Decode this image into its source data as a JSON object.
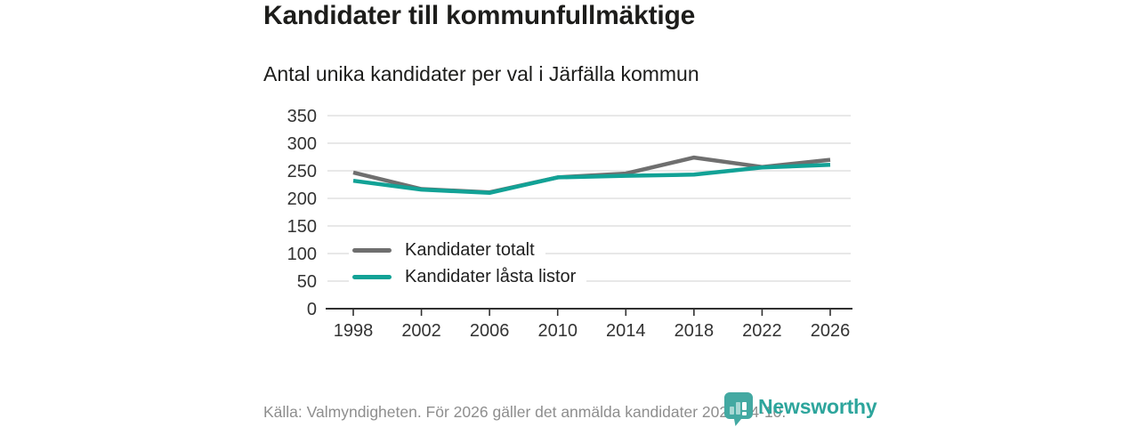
{
  "header": {
    "title": "Kandidater till kommunfullmäktige",
    "subtitle": "Antal unika kandidater per val i Järfälla kommun"
  },
  "chart_data": {
    "type": "line",
    "title": "Kandidater till kommunfullmäktige",
    "subtitle": "Antal unika kandidater per val i Järfälla kommun",
    "x": [
      1998,
      2002,
      2006,
      2010,
      2014,
      2018,
      2022,
      2026
    ],
    "series": [
      {
        "name": "Kandidater totalt",
        "color": "#6f6f6f",
        "values": [
          247,
          217,
          211,
          238,
          245,
          274,
          257,
          270
        ]
      },
      {
        "name": "Kandidater låsta listor",
        "color": "#12a296",
        "values": [
          232,
          216,
          210,
          238,
          241,
          243,
          256,
          261
        ]
      }
    ],
    "ylim": [
      0,
      350
    ],
    "ytick_step": 50,
    "xtick_labels": [
      "1998",
      "2002",
      "2006",
      "2010",
      "2014",
      "2018",
      "2022",
      "2026"
    ],
    "grid": true,
    "legend_position": "inside bottom-left"
  },
  "footer": {
    "source_text": "Källa: Valmyndigheten. För 2026 gäller det anmälda kandidater 2026-04-10.",
    "brand_name": "Newsworthy"
  },
  "colors": {
    "accent_teal": "#12a296",
    "series_gray": "#6f6f6f",
    "brand_teal": "#2da59c",
    "brand_icon_teal": "#43a9a2",
    "gridline": "#d9d9d9",
    "axis": "#303030",
    "axis_text": "#333333",
    "footer_text": "#8e8e8e"
  }
}
